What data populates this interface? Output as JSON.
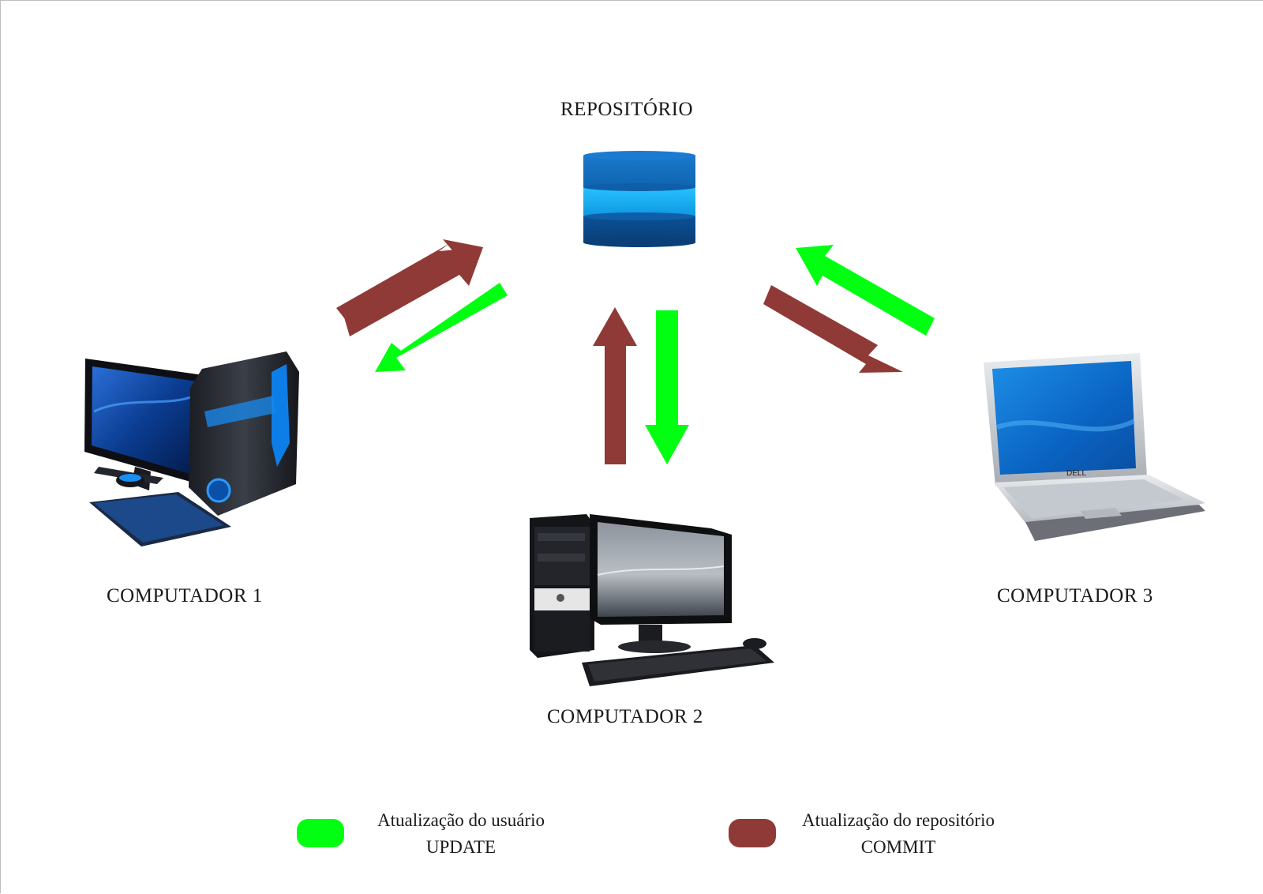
{
  "labels": {
    "repository": "REPOSITÓRIO",
    "computer1": "COMPUTADOR 1",
    "computer2": "COMPUTADOR 2",
    "computer3": "COMPUTADOR 3"
  },
  "legend": {
    "update": {
      "line1": "Atualização do usuário",
      "line2": "UPDATE",
      "color": "#00ff11"
    },
    "commit": {
      "line1": "Atualização do repositório",
      "line2": "COMMIT",
      "color": "#8f3a36"
    }
  },
  "icons": {
    "repository": "database-icon",
    "computer1": "gaming-desktop-icon",
    "computer2": "desktop-tower-icon",
    "computer3": "laptop-icon"
  }
}
